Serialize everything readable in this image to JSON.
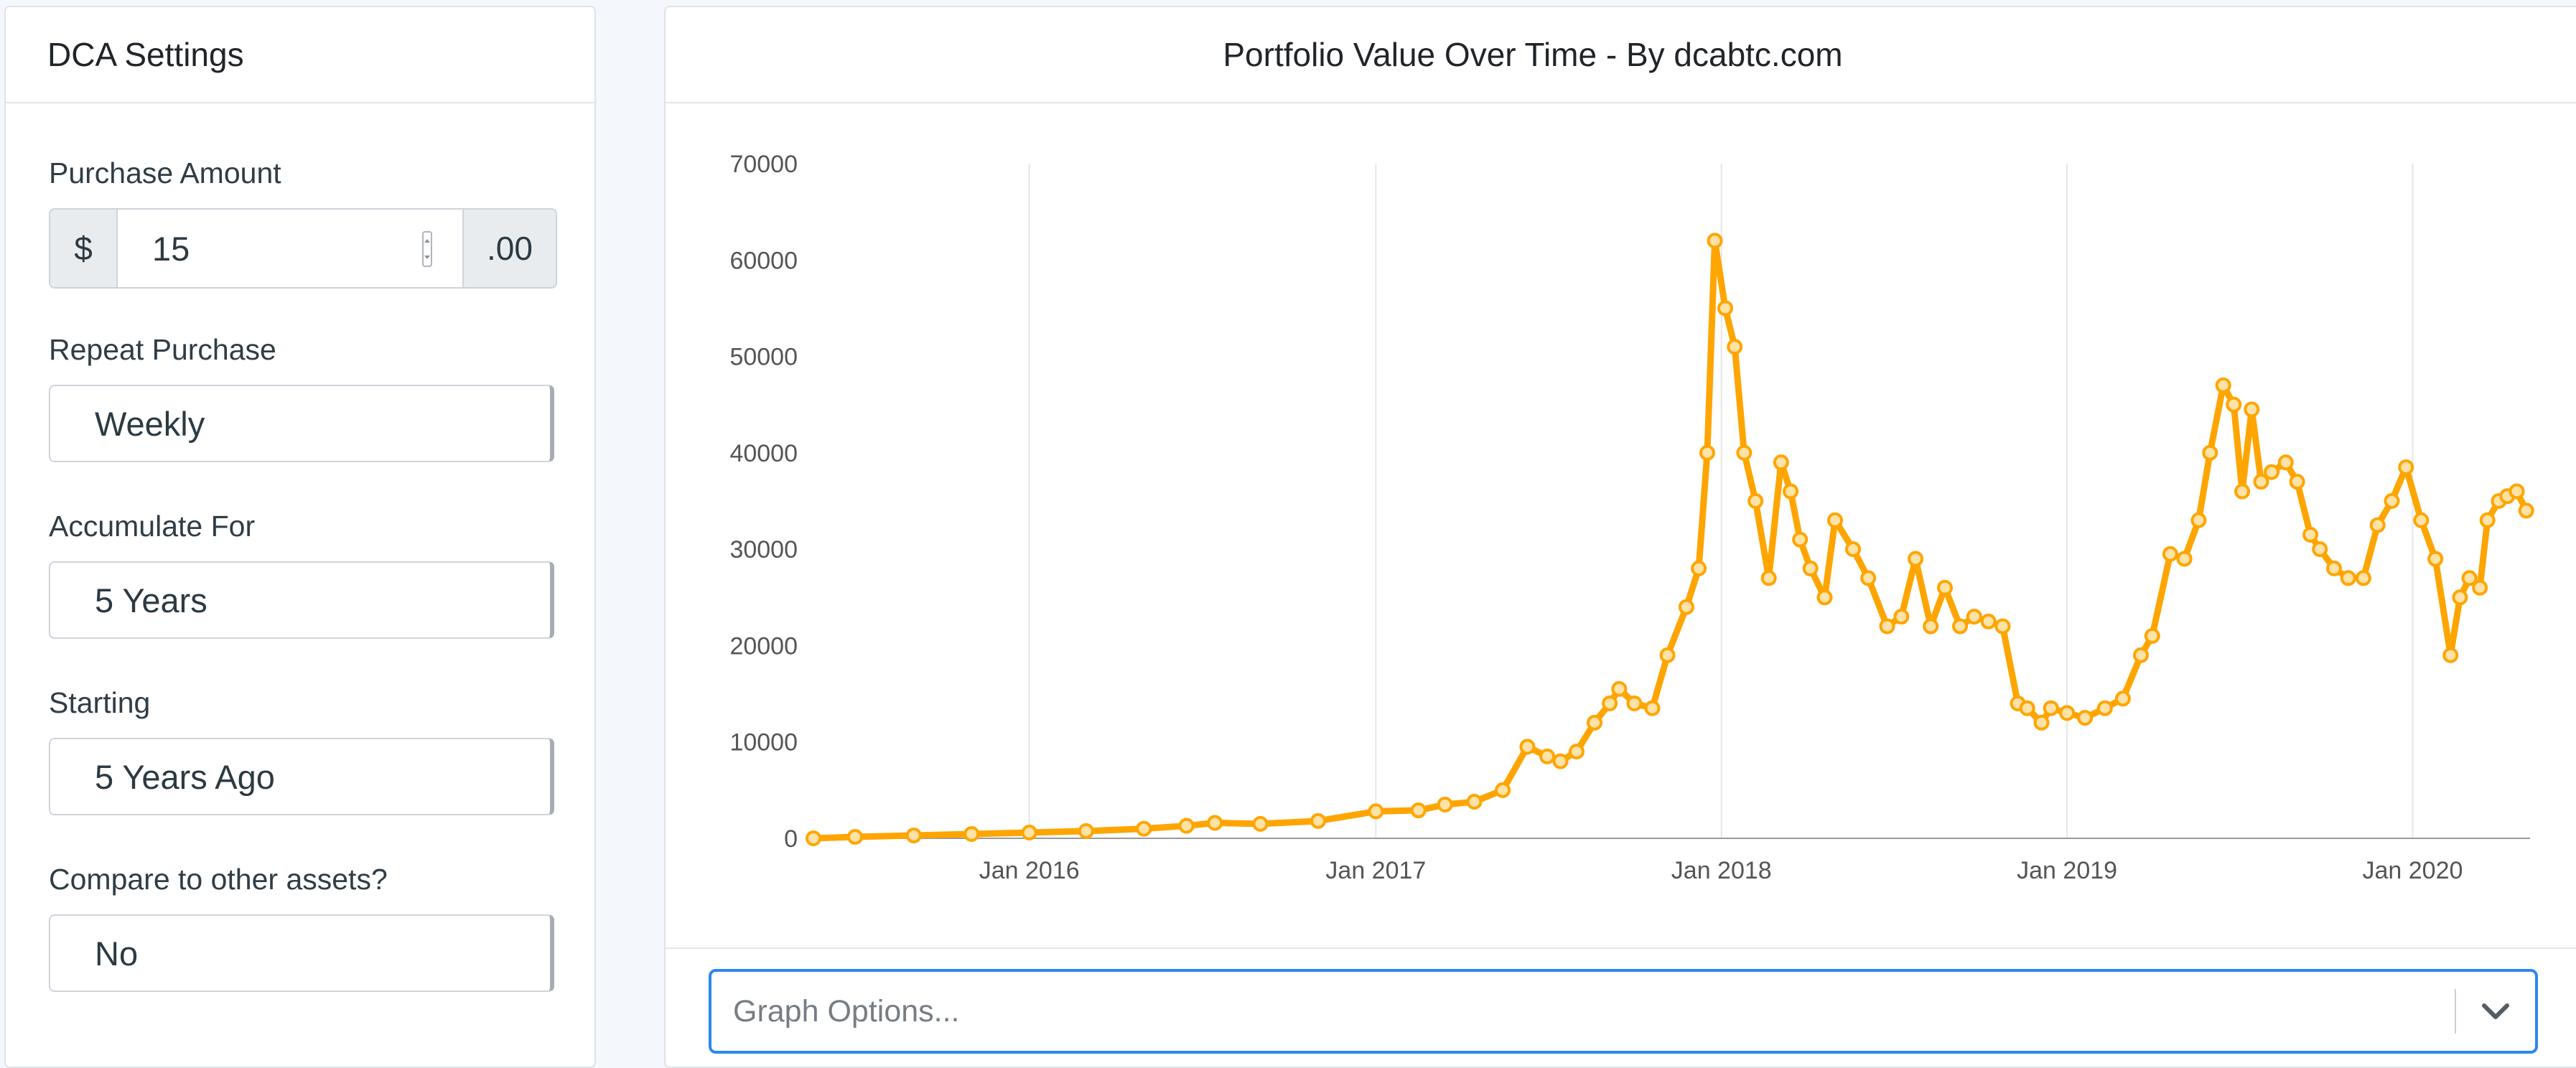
{
  "settings": {
    "title": "DCA Settings",
    "purchase_amount": {
      "label": "Purchase Amount",
      "prefix": "$",
      "value": "15",
      "suffix": ".00"
    },
    "repeat_purchase": {
      "label": "Repeat Purchase",
      "value": "Weekly"
    },
    "accumulate_for": {
      "label": "Accumulate For",
      "value": "5 Years"
    },
    "starting": {
      "label": "Starting",
      "value": "5 Years Ago"
    },
    "compare": {
      "label": "Compare to other assets?",
      "value": "No"
    }
  },
  "chart_panel": {
    "title": "Portfolio Value Over Time - By dcabtc.com",
    "graph_options_placeholder": "Graph Options..."
  },
  "icons": {
    "dropdown": "chevron-down-icon",
    "spinner": "number-spinner-icon"
  },
  "colors": {
    "series": "#ffa500",
    "focus_border": "#2d87ef"
  },
  "chart_data": {
    "type": "line",
    "title": "Portfolio Value Over Time - By dcabtc.com",
    "xlabel": "",
    "ylabel": "",
    "ylim": [
      0,
      70000
    ],
    "xlim": [
      "2015-05-18",
      "2020-05-04"
    ],
    "y_ticks": [
      0,
      10000,
      20000,
      30000,
      40000,
      50000,
      60000,
      70000
    ],
    "x_ticks": [
      {
        "date": "2016-01-01",
        "label": "Jan 2016"
      },
      {
        "date": "2017-01-01",
        "label": "Jan 2017"
      },
      {
        "date": "2018-01-01",
        "label": "Jan 2018"
      },
      {
        "date": "2019-01-01",
        "label": "Jan 2019"
      },
      {
        "date": "2020-01-01",
        "label": "Jan 2020"
      }
    ],
    "grid": "vertical-x-only",
    "legend": "none",
    "series": [
      {
        "x": [
          "2015-05-18",
          "2015-07-01",
          "2015-09-01",
          "2015-11-01",
          "2016-01-01",
          "2016-03-01",
          "2016-05-01",
          "2016-06-15",
          "2016-07-15",
          "2016-09-01",
          "2016-11-01",
          "2017-01-01",
          "2017-02-15",
          "2017-03-15",
          "2017-04-15",
          "2017-05-15",
          "2017-06-10",
          "2017-07-01",
          "2017-07-15",
          "2017-08-01",
          "2017-08-20",
          "2017-09-05",
          "2017-09-15",
          "2017-10-01",
          "2017-10-20",
          "2017-11-05",
          "2017-11-25",
          "2017-12-08",
          "2017-12-17",
          "2017-12-25",
          "2018-01-05",
          "2018-01-15",
          "2018-01-25",
          "2018-02-06",
          "2018-02-20",
          "2018-03-05",
          "2018-03-15",
          "2018-03-25",
          "2018-04-05",
          "2018-04-20",
          "2018-05-01",
          "2018-05-20",
          "2018-06-05",
          "2018-06-25",
          "2018-07-10",
          "2018-07-25",
          "2018-08-10",
          "2018-08-25",
          "2018-09-10",
          "2018-09-25",
          "2018-10-10",
          "2018-10-25",
          "2018-11-10",
          "2018-11-20",
          "2018-12-05",
          "2018-12-15",
          "2019-01-01",
          "2019-01-20",
          "2019-02-10",
          "2019-03-01",
          "2019-03-20",
          "2019-04-01",
          "2019-04-20",
          "2019-05-05",
          "2019-05-20",
          "2019-06-01",
          "2019-06-15",
          "2019-06-26",
          "2019-07-05",
          "2019-07-15",
          "2019-07-25",
          "2019-08-05",
          "2019-08-20",
          "2019-09-01",
          "2019-09-15",
          "2019-09-25",
          "2019-10-10",
          "2019-10-25",
          "2019-11-10",
          "2019-11-25",
          "2019-12-10",
          "2019-12-25",
          "2020-01-10",
          "2020-01-25",
          "2020-02-10",
          "2020-02-20",
          "2020-03-01",
          "2020-03-12",
          "2020-03-20",
          "2020-04-01",
          "2020-04-10",
          "2020-04-20",
          "2020-04-30"
        ],
        "y": [
          0,
          150,
          300,
          450,
          600,
          750,
          1000,
          1300,
          1600,
          1500,
          1800,
          2800,
          2900,
          3500,
          3800,
          5000,
          9500,
          8500,
          8000,
          9000,
          12000,
          14000,
          15500,
          14000,
          13500,
          19000,
          24000,
          28000,
          40000,
          62000,
          55000,
          51000,
          40000,
          35000,
          27000,
          39000,
          36000,
          31000,
          28000,
          25000,
          33000,
          30000,
          27000,
          22000,
          23000,
          29000,
          22000,
          26000,
          22000,
          23000,
          22500,
          22000,
          14000,
          13500,
          12000,
          13500,
          13000,
          12500,
          13500,
          14500,
          19000,
          21000,
          29500,
          29000,
          33000,
          40000,
          47000,
          45000,
          36000,
          44500,
          37000,
          38000,
          39000,
          37000,
          31500,
          30000,
          28000,
          27000,
          27000,
          32500,
          35000,
          38500,
          33000,
          29000,
          19000,
          25000,
          27000,
          26000,
          33000,
          35000,
          35500,
          36000,
          34000
        ]
      }
    ]
  }
}
